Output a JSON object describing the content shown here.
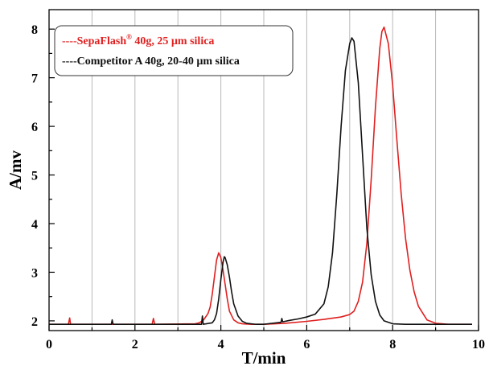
{
  "chart_data": {
    "type": "line",
    "title": "",
    "xlabel": "T/min",
    "ylabel": "A/mv",
    "xlim": [
      0,
      10
    ],
    "ylim": [
      1.8,
      8.4
    ],
    "x_ticks": [
      "0",
      "2",
      "4",
      "6",
      "8",
      "10"
    ],
    "y_ticks": [
      "2",
      "3",
      "4",
      "5",
      "6",
      "7",
      "8"
    ],
    "grid": "vertical",
    "legend_position": "top-left",
    "series": [
      {
        "name": "----SepaFlash",
        "name_sup": "®",
        "name_rest": " 40g, 25 µm silica",
        "color": "#e02020",
        "x": [
          0,
          0.45,
          0.48,
          0.5,
          2.4,
          2.43,
          2.46,
          3.4,
          3.5,
          3.6,
          3.7,
          3.75,
          3.8,
          3.85,
          3.9,
          3.95,
          4.0,
          4.05,
          4.1,
          4.15,
          4.2,
          4.3,
          4.4,
          4.5,
          4.7,
          5.0,
          5.5,
          6.0,
          6.4,
          6.8,
          7.0,
          7.1,
          7.2,
          7.3,
          7.4,
          7.5,
          7.6,
          7.7,
          7.75,
          7.8,
          7.9,
          8.0,
          8.1,
          8.2,
          8.3,
          8.4,
          8.5,
          8.6,
          8.8,
          9.0,
          9.3,
          9.85
        ],
        "y": [
          1.93,
          1.93,
          2.06,
          1.93,
          1.93,
          2.05,
          1.93,
          1.94,
          1.96,
          2.02,
          2.15,
          2.28,
          2.55,
          2.9,
          3.25,
          3.4,
          3.3,
          3.05,
          2.75,
          2.45,
          2.2,
          2.02,
          1.96,
          1.94,
          1.93,
          1.93,
          1.95,
          1.99,
          2.03,
          2.08,
          2.13,
          2.2,
          2.4,
          2.8,
          3.6,
          4.9,
          6.4,
          7.6,
          7.95,
          8.04,
          7.7,
          6.85,
          5.7,
          4.6,
          3.7,
          3.05,
          2.6,
          2.3,
          2.02,
          1.95,
          1.93,
          1.93
        ]
      },
      {
        "name": "----Competitor A 40g, 20-40 µm silica",
        "color": "#111111",
        "x": [
          0,
          1.45,
          1.47,
          1.49,
          3.55,
          3.57,
          3.59,
          3.8,
          3.85,
          3.9,
          3.95,
          4.0,
          4.05,
          4.08,
          4.1,
          4.15,
          4.2,
          4.25,
          4.3,
          4.4,
          4.5,
          4.6,
          4.8,
          5.0,
          5.4,
          5.42,
          5.44,
          5.6,
          5.8,
          6.0,
          6.2,
          6.4,
          6.5,
          6.6,
          6.7,
          6.8,
          6.9,
          7.0,
          7.05,
          7.1,
          7.2,
          7.3,
          7.4,
          7.5,
          7.6,
          7.7,
          7.8,
          8.0,
          8.3,
          9.85
        ],
        "y": [
          1.93,
          1.93,
          2.02,
          1.93,
          1.93,
          2.1,
          1.93,
          1.96,
          2.02,
          2.15,
          2.45,
          2.85,
          3.2,
          3.32,
          3.3,
          3.15,
          2.9,
          2.6,
          2.35,
          2.1,
          1.99,
          1.95,
          1.93,
          1.93,
          1.97,
          2.05,
          1.98,
          2.01,
          2.04,
          2.08,
          2.14,
          2.35,
          2.7,
          3.4,
          4.6,
          6.0,
          7.15,
          7.7,
          7.82,
          7.75,
          6.9,
          5.4,
          3.9,
          2.95,
          2.4,
          2.12,
          2.0,
          1.94,
          1.93,
          1.93
        ]
      }
    ]
  }
}
